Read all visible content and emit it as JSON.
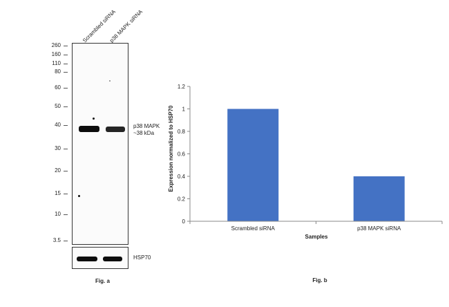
{
  "blot": {
    "lanes": [
      "Scrambled siRNA",
      "p38 MAPK siRNA"
    ],
    "mw_markers": [
      "260",
      "160",
      "110",
      "80",
      "60",
      "50",
      "40",
      "30",
      "20",
      "15",
      "10",
      "3.5"
    ],
    "target_label_line1": "p38 MAPK",
    "target_label_line2": "~38 kDa",
    "loading_control_label": "HSP70",
    "caption": "Fig. a"
  },
  "chart_data": {
    "type": "bar",
    "categories": [
      "Scrambled siRNA",
      "p38 MAPK siRNA"
    ],
    "series": [
      {
        "values": [
          1.0,
          0.4
        ],
        "color": "#4472c4"
      }
    ],
    "title": "",
    "xlabel": "Samples",
    "ylabel": "Expression normalized to HSP70",
    "ylim": [
      0,
      1.2
    ],
    "yticks": [
      "0",
      "0.2",
      "0.4",
      "0.6",
      "0.8",
      "1",
      "1.2"
    ],
    "grid": false,
    "caption": "Fig. b"
  }
}
